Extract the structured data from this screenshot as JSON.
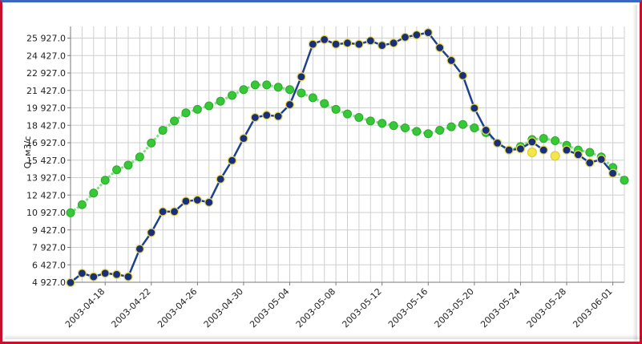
{
  "chart_data": {
    "type": "line",
    "title": "",
    "ylabel": "Q, м3/с",
    "xlabel": "",
    "ylim": [
      4927,
      26927
    ],
    "xlim": [
      "2003-04-15",
      "2003-06-02"
    ],
    "y_ticks": [
      4927,
      6427,
      7927,
      9427,
      10927,
      12427,
      13927,
      15427,
      16927,
      18427,
      19927,
      21427,
      22927,
      24427,
      25927
    ],
    "y_tick_labels": [
      "4 927.0",
      "6 427.0",
      "7 927.0",
      "9 427.0",
      "10 927.0",
      "12 427.0",
      "13 927.0",
      "15 427.0",
      "16 927.0",
      "18 427.0",
      "19 927.0",
      "21 427.0",
      "22 927.0",
      "24 427.0",
      "25 927.0"
    ],
    "x_tick_labels": [
      "2003-04-18",
      "2003-04-22",
      "2003-04-26",
      "2003-04-30",
      "2003-05-04",
      "2003-05-08",
      "2003-05-12",
      "2003-05-16",
      "2003-05-20",
      "2003-05-24",
      "2003-05-28",
      "2003-06-01"
    ],
    "grid": true,
    "legend": "none",
    "series": [
      {
        "color": "#2ecc40",
        "marker_color": "#37c837",
        "line_style": "dotted",
        "x": [
          "2003-04-15",
          "2003-04-16",
          "2003-04-17",
          "2003-04-18",
          "2003-04-19",
          "2003-04-20",
          "2003-04-21",
          "2003-04-22",
          "2003-04-23",
          "2003-04-24",
          "2003-04-25",
          "2003-04-26",
          "2003-04-27",
          "2003-04-28",
          "2003-04-29",
          "2003-04-30",
          "2003-05-01",
          "2003-05-02",
          "2003-05-03",
          "2003-05-04",
          "2003-05-05",
          "2003-05-06",
          "2003-05-07",
          "2003-05-08",
          "2003-05-09",
          "2003-05-10",
          "2003-05-11",
          "2003-05-12",
          "2003-05-13",
          "2003-05-14",
          "2003-05-15",
          "2003-05-16",
          "2003-05-17",
          "2003-05-18",
          "2003-05-19",
          "2003-05-20",
          "2003-05-21",
          "2003-05-22",
          "2003-05-23",
          "2003-05-24",
          "2003-05-25",
          "2003-05-26",
          "2003-05-27",
          "2003-05-28",
          "2003-05-29",
          "2003-05-30",
          "2003-05-31",
          "2003-06-01",
          "2003-06-02"
        ],
        "y": [
          10900,
          11600,
          12600,
          13700,
          14600,
          15000,
          15700,
          16900,
          18000,
          18800,
          19500,
          19800,
          20100,
          20500,
          21000,
          21500,
          21900,
          21900,
          21700,
          21500,
          21200,
          20800,
          20300,
          19800,
          19400,
          19100,
          18800,
          18600,
          18400,
          18200,
          17900,
          17700,
          18000,
          18300,
          18500,
          18200,
          17800,
          16900,
          16300,
          16600,
          17200,
          17300,
          17100,
          16700,
          16300,
          16100,
          15700,
          14800,
          13700
        ]
      },
      {
        "color": "#1f3f8f",
        "marker_color": "#1a2f7a",
        "marker_edge": "#e8d84a",
        "line_style": "solid",
        "x": [
          "2003-04-15",
          "2003-04-16",
          "2003-04-17",
          "2003-04-18",
          "2003-04-19",
          "2003-04-20",
          "2003-04-21",
          "2003-04-22",
          "2003-04-23",
          "2003-04-24",
          "2003-04-25",
          "2003-04-26",
          "2003-04-27",
          "2003-04-28",
          "2003-04-29",
          "2003-04-30",
          "2003-05-01",
          "2003-05-02",
          "2003-05-03",
          "2003-05-04",
          "2003-05-05",
          "2003-05-06",
          "2003-05-07",
          "2003-05-08",
          "2003-05-09",
          "2003-05-10",
          "2003-05-11",
          "2003-05-12",
          "2003-05-13",
          "2003-05-14",
          "2003-05-15",
          "2003-05-16",
          "2003-05-17",
          "2003-05-18",
          "2003-05-19",
          "2003-05-20",
          "2003-05-21",
          "2003-05-22",
          "2003-05-23",
          "2003-05-24",
          "2003-05-25",
          "2003-05-26",
          "2003-05-27",
          "2003-05-28",
          "2003-05-29",
          "2003-05-30",
          "2003-05-31",
          "2003-06-01",
          "2003-06-02"
        ],
        "y": [
          4900,
          5700,
          5400,
          5700,
          5600,
          5400,
          7800,
          9200,
          11000,
          11000,
          11900,
          12000,
          11800,
          13800,
          15400,
          17300,
          19100,
          19300,
          19200,
          20200,
          22600,
          25400,
          25800,
          25400,
          25500,
          25400,
          25700,
          25300,
          25500,
          26000,
          26200,
          26400,
          25100,
          24000,
          22700,
          19900,
          18000,
          16900,
          16300,
          16400,
          17000,
          16300,
          null,
          16300,
          15900,
          15200,
          15500,
          14300,
          null
        ],
        "yellow_points": {
          "x": [
            "2003-05-25",
            "2003-05-27"
          ],
          "y": [
            16100,
            15800
          ]
        }
      }
    ]
  }
}
